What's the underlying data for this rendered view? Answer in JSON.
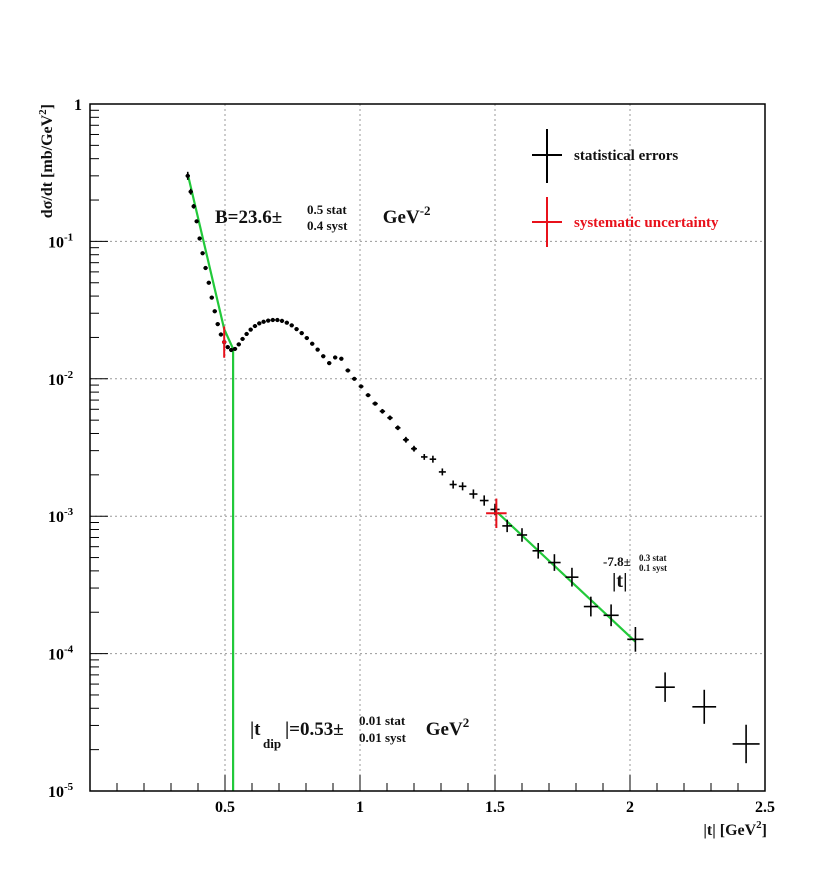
{
  "chart_data": {
    "type": "scatter",
    "scale": {
      "x": "linear",
      "y": "log"
    },
    "xlim": [
      0.0,
      2.5
    ],
    "ylim": [
      1e-05,
      1
    ],
    "grid": true,
    "xlabel": {
      "text": "|t| [GeV",
      "sup": "2",
      "end": "]"
    },
    "ylabel": {
      "text": "dσ/dt [mb/GeV",
      "sup": "2",
      "end": "]"
    },
    "x_ticks": [
      {
        "value": 0.5,
        "label": "0.5"
      },
      {
        "value": 1.0,
        "label": "1"
      },
      {
        "value": 1.5,
        "label": "1.5"
      },
      {
        "value": 2.0,
        "label": "2"
      },
      {
        "value": 2.5,
        "label": "2.5"
      }
    ],
    "y_ticks": [
      {
        "value": 1,
        "base": "1",
        "exp": ""
      },
      {
        "value": 0.1,
        "base": "10",
        "exp": "-1"
      },
      {
        "value": 0.01,
        "base": "10",
        "exp": "-2"
      },
      {
        "value": 0.001,
        "base": "10",
        "exp": "-3"
      },
      {
        "value": 0.0001,
        "base": "10",
        "exp": "-4"
      },
      {
        "value": 1e-05,
        "base": "10",
        "exp": "-5"
      }
    ],
    "legend": {
      "placement": "top-right",
      "entries": [
        {
          "label": "statistical errors",
          "color": "#000000"
        },
        {
          "label": "systematic uncertainty",
          "color": "#e8111b"
        }
      ]
    },
    "annotations": {
      "slope": {
        "main": "B=23.6±",
        "sup": "0.5 stat",
        "sub": "0.4 syst",
        "tail": " GeV",
        "tail_sup": "-2"
      },
      "dip": {
        "pre": "|t",
        "pre_sub": "dip",
        "main": "|=0.53±",
        "sup": "0.01 stat",
        "sub": "0.01 syst",
        "tail": " GeV",
        "tail_sup": "2"
      },
      "power": {
        "main": "|t|",
        "sup_a": "-7.8±",
        "sup_b": "0.3 stat",
        "sub_b": "0.1 syst"
      }
    },
    "series": [
      {
        "name": "statistical errors",
        "color": "#000000",
        "points": [
          [
            0.362,
            0.3,
            0.008,
            0.07
          ],
          [
            0.373,
            0.23,
            0.008,
            0.05
          ],
          [
            0.384,
            0.18,
            0.008,
            0.04
          ],
          [
            0.395,
            0.14,
            0.008,
            0.03
          ],
          [
            0.406,
            0.105,
            0.008,
            0.03
          ],
          [
            0.417,
            0.082,
            0.008,
            0.03
          ],
          [
            0.428,
            0.064,
            0.008,
            0.03
          ],
          [
            0.44,
            0.05,
            0.008,
            0.03
          ],
          [
            0.451,
            0.039,
            0.008,
            0.03
          ],
          [
            0.462,
            0.031,
            0.008,
            0.03
          ],
          [
            0.473,
            0.025,
            0.008,
            0.03
          ],
          [
            0.485,
            0.021,
            0.008,
            0.03
          ],
          [
            0.497,
            0.0185,
            0.008,
            0.03
          ],
          [
            0.51,
            0.017,
            0.008,
            0.03
          ],
          [
            0.523,
            0.0162,
            0.008,
            0.03
          ],
          [
            0.537,
            0.0165,
            0.008,
            0.03
          ],
          [
            0.551,
            0.0178,
            0.008,
            0.03
          ],
          [
            0.565,
            0.0195,
            0.008,
            0.03
          ],
          [
            0.58,
            0.0212,
            0.008,
            0.03
          ],
          [
            0.595,
            0.0228,
            0.008,
            0.03
          ],
          [
            0.611,
            0.0242,
            0.008,
            0.03
          ],
          [
            0.627,
            0.0253,
            0.008,
            0.03
          ],
          [
            0.643,
            0.026,
            0.008,
            0.03
          ],
          [
            0.66,
            0.0265,
            0.008,
            0.03
          ],
          [
            0.677,
            0.0268,
            0.008,
            0.03
          ],
          [
            0.694,
            0.0268,
            0.008,
            0.03
          ],
          [
            0.711,
            0.0264,
            0.008,
            0.03
          ],
          [
            0.729,
            0.0256,
            0.008,
            0.03
          ],
          [
            0.747,
            0.0245,
            0.008,
            0.03
          ],
          [
            0.765,
            0.023,
            0.008,
            0.03
          ],
          [
            0.784,
            0.0215,
            0.008,
            0.03
          ],
          [
            0.803,
            0.0198,
            0.008,
            0.03
          ],
          [
            0.823,
            0.018,
            0.008,
            0.03
          ],
          [
            0.843,
            0.0163,
            0.008,
            0.03
          ],
          [
            0.864,
            0.0146,
            0.008,
            0.03
          ],
          [
            0.886,
            0.013,
            0.008,
            0.03
          ],
          [
            0.908,
            0.0143,
            0.008,
            0.03
          ],
          [
            0.931,
            0.014,
            0.008,
            0.03
          ],
          [
            0.955,
            0.0115,
            0.009,
            0.03
          ],
          [
            0.979,
            0.01,
            0.009,
            0.03
          ],
          [
            1.004,
            0.0088,
            0.009,
            0.03
          ],
          [
            1.03,
            0.0076,
            0.009,
            0.03
          ],
          [
            1.056,
            0.0066,
            0.01,
            0.03
          ],
          [
            1.083,
            0.0058,
            0.01,
            0.04
          ],
          [
            1.111,
            0.0052,
            0.01,
            0.04
          ],
          [
            1.14,
            0.0044,
            0.01,
            0.04
          ],
          [
            1.17,
            0.0036,
            0.011,
            0.05
          ],
          [
            1.2,
            0.0031,
            0.011,
            0.05
          ],
          [
            1.238,
            0.0027,
            0.012,
            0.05
          ],
          [
            1.27,
            0.0026,
            0.012,
            0.06
          ],
          [
            1.305,
            0.0021,
            0.013,
            0.06
          ],
          [
            1.345,
            0.0017,
            0.013,
            0.07
          ],
          [
            1.38,
            0.00165,
            0.014,
            0.07
          ],
          [
            1.42,
            0.00145,
            0.015,
            0.08
          ],
          [
            1.46,
            0.0013,
            0.016,
            0.09
          ],
          [
            1.5,
            0.00112,
            0.017,
            0.1
          ],
          [
            1.545,
            0.00085,
            0.018,
            0.11
          ],
          [
            1.6,
            0.00073,
            0.019,
            0.12
          ],
          [
            1.66,
            0.00056,
            0.021,
            0.14
          ],
          [
            1.72,
            0.00046,
            0.023,
            0.15
          ],
          [
            1.785,
            0.00036,
            0.024,
            0.17
          ],
          [
            1.855,
            0.00022,
            0.026,
            0.18
          ],
          [
            1.93,
            0.00019,
            0.028,
            0.2
          ],
          [
            2.02,
            0.000127,
            0.03,
            0.23
          ],
          [
            2.13,
            5.7e-05,
            0.036,
            0.28
          ],
          [
            2.275,
            4.1e-05,
            0.044,
            0.33
          ],
          [
            2.43,
            2.2e-05,
            0.05,
            0.38
          ]
        ]
      },
      {
        "name": "systematic uncertainty",
        "color": "#e8111b",
        "points": [
          [
            0.497,
            0.0185,
            0.008,
            0.3
          ],
          [
            1.505,
            0.00105,
            0.038,
            0.28
          ]
        ]
      }
    ],
    "fits": [
      {
        "color": "#22c93a",
        "points": [
          [
            0.362,
            0.31
          ],
          [
            0.497,
            0.023
          ],
          [
            0.53,
            0.0165
          ],
          [
            0.53,
            1e-05
          ]
        ]
      },
      {
        "color": "#22c93a",
        "points": [
          [
            1.51,
            0.00106
          ],
          [
            2.02,
            0.000122
          ]
        ]
      }
    ]
  }
}
